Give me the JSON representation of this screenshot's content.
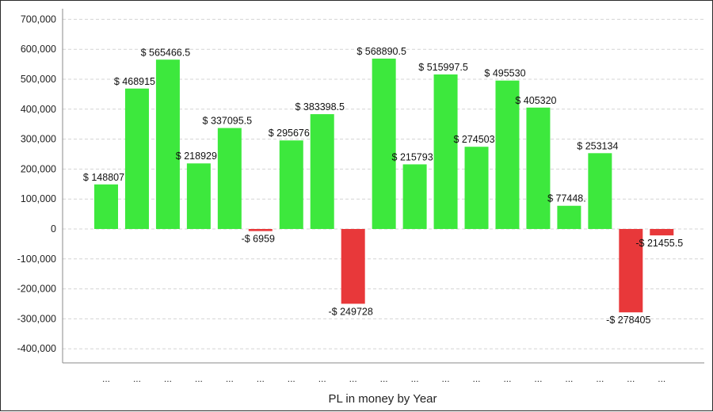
{
  "chart_data": {
    "type": "bar",
    "title": "",
    "xlabel": "PL in money by Year",
    "ylabel": "",
    "ylim": [
      -450000,
      720000
    ],
    "yticks": [
      700000,
      600000,
      500000,
      400000,
      300000,
      200000,
      100000,
      0,
      -100000,
      -200000,
      -300000,
      -400000
    ],
    "ytick_labels": [
      "700,000",
      "600,000",
      "500,000",
      "400,000",
      "300,000",
      "200,000",
      "100,000",
      "0",
      "-100,000",
      "-200,000",
      "-300,000",
      "-400,000"
    ],
    "grid": true,
    "legend": "none",
    "categories": [
      "...",
      "...",
      "...",
      "...",
      "...",
      "...",
      "...",
      "...",
      "...",
      "...",
      "...",
      "...",
      "...",
      "...",
      "...",
      "...",
      "...",
      "...",
      "..."
    ],
    "values": [
      148807,
      468915,
      565466.5,
      218929,
      337095.5,
      -6959,
      295676,
      383398.5,
      -249728,
      568890.5,
      215793,
      515997.5,
      274503,
      495530,
      405320,
      77448,
      253134,
      -278405,
      -21455.5
    ],
    "data_labels": [
      "$ 148807",
      "$ 468915",
      "$ 565466.5",
      "$ 218929",
      "$ 337095.5",
      "-$ 6959",
      "$ 295676",
      "$ 383398.5",
      "-$ 249728",
      "$ 568890.5",
      "$ 215793",
      "$ 515997.5",
      "$ 274503",
      "$ 495530",
      "$ 405320",
      "$ 77448.",
      "$ 253134",
      "-$ 278405",
      "-$ 21455.5"
    ],
    "colors": {
      "positive": "#3de83d",
      "negative": "#e8383a",
      "grid": "#d4d4d4",
      "axis": "#888888",
      "plot_bg": "#ffffff"
    }
  }
}
